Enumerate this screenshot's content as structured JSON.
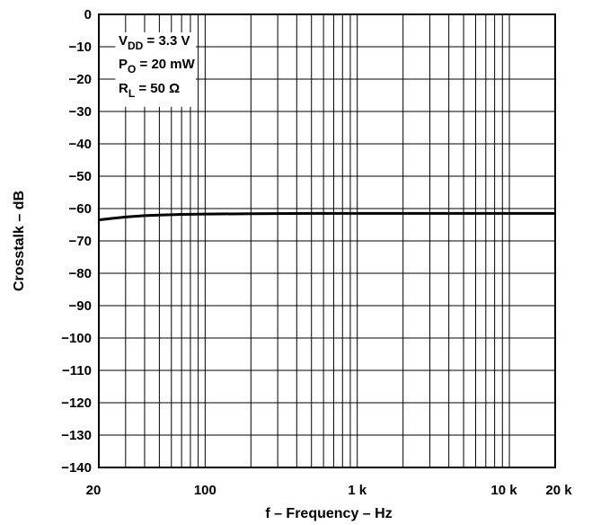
{
  "chart_data": {
    "type": "line",
    "xscale": "log",
    "xlim": [
      20,
      20000
    ],
    "ylim": [
      -140,
      0
    ],
    "xlabel": "f – Frequency – Hz",
    "ylabel": "Crosstalk – dB",
    "grid": true,
    "x_ticks": [
      20,
      100,
      1000,
      10000,
      20000
    ],
    "x_tick_labels": [
      "20",
      "100",
      "1 k",
      "10 k",
      "20 k"
    ],
    "y_ticks": [
      0,
      -10,
      -20,
      -30,
      -40,
      -50,
      -60,
      -70,
      -80,
      -90,
      -100,
      -110,
      -120,
      -130,
      -140
    ],
    "y_tick_labels": [
      "0",
      "−10",
      "−20",
      "−30",
      "−40",
      "−50",
      "−60",
      "−70",
      "−80",
      "−90",
      "−100",
      "−110",
      "−120",
      "−130",
      "−140"
    ],
    "annotation": {
      "vdd": {
        "main": "V",
        "sub": "DD",
        "rest": " = 3.3 V"
      },
      "po": {
        "main": "P",
        "sub": "O",
        "rest": " = 20 mW"
      },
      "rl": {
        "main": "R",
        "sub": "L",
        "rest": " = 50 Ω"
      }
    },
    "series": [
      {
        "x": [
          20,
          25,
          30,
          40,
          50,
          70,
          100,
          200,
          500,
          1000,
          2000,
          5000,
          10000,
          20000
        ],
        "y": [
          -63.5,
          -63,
          -62.6,
          -62.2,
          -62,
          -61.8,
          -61.7,
          -61.6,
          -61.5,
          -61.5,
          -61.5,
          -61.5,
          -61.5,
          -61.5
        ]
      }
    ]
  }
}
